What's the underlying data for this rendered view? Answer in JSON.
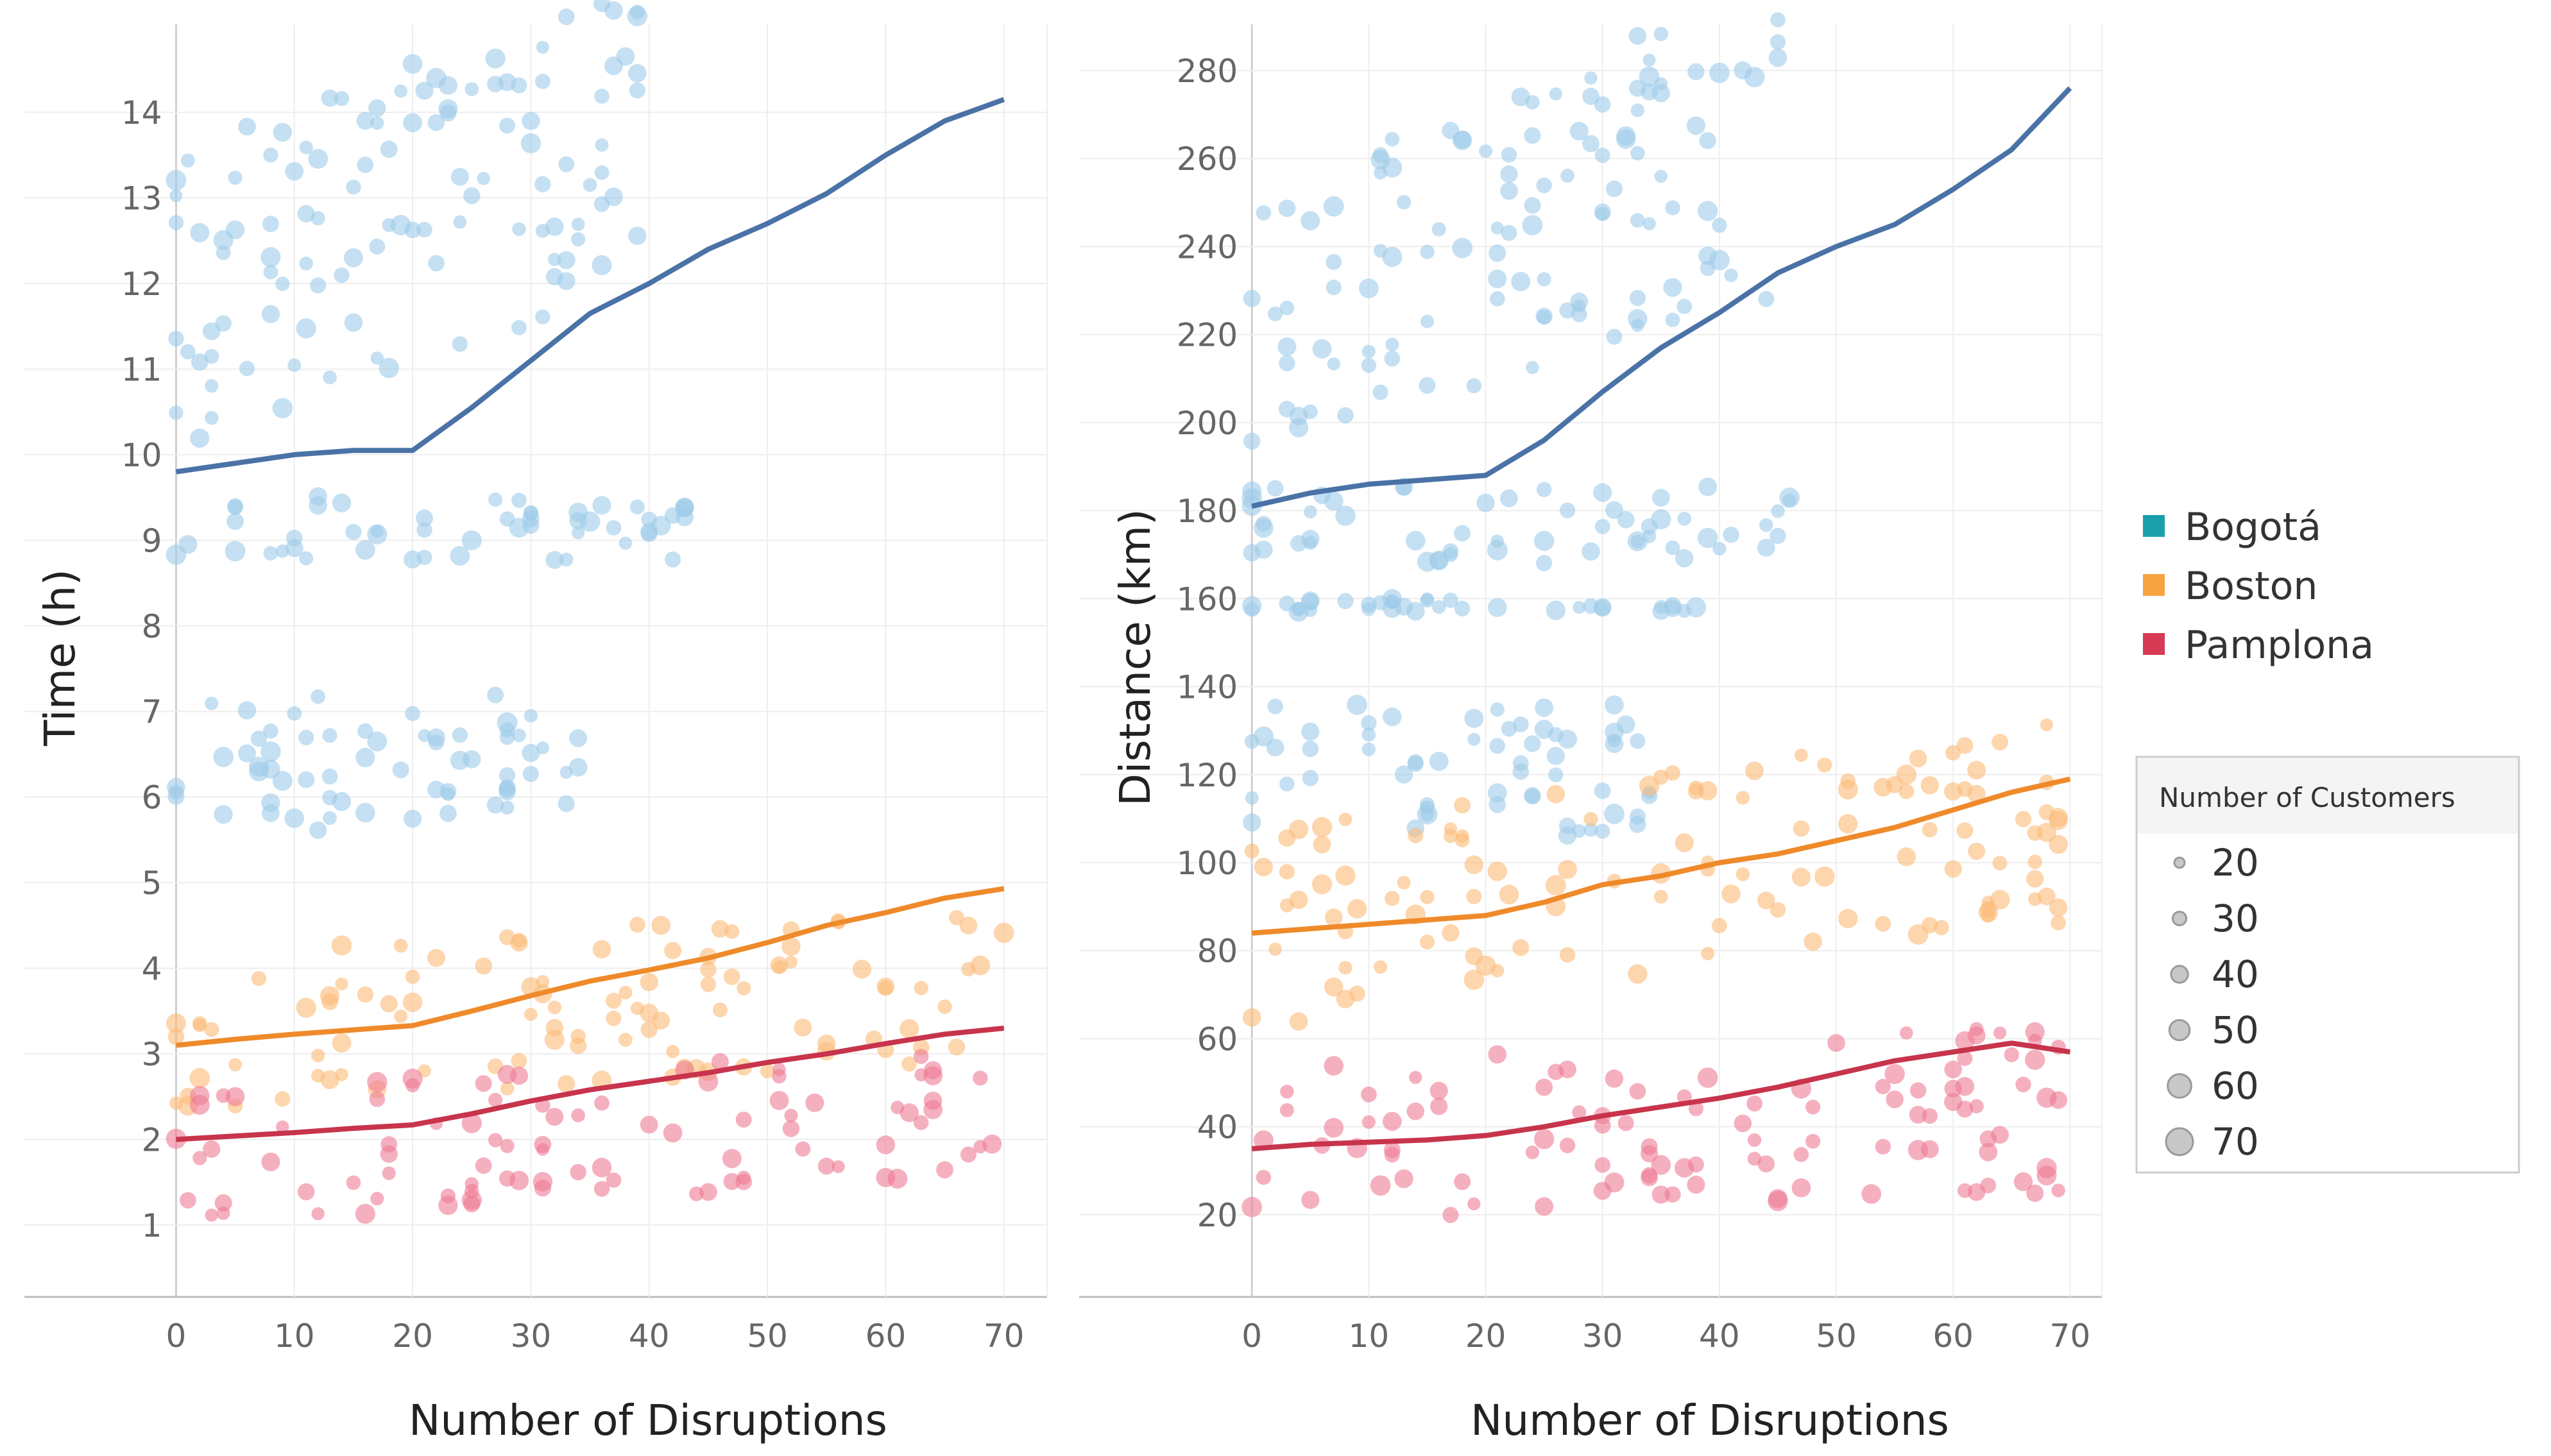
{
  "legend": {
    "items": [
      {
        "label": "Bogotá",
        "color": "#1a9faa"
      },
      {
        "label": "Boston",
        "color": "#f7a340"
      },
      {
        "label": "Pamplona",
        "color": "#d63a54"
      }
    ]
  },
  "size_legend": {
    "title": "Number of Customers",
    "items": [
      "20",
      "30",
      "40",
      "50",
      "60",
      "70"
    ]
  },
  "point_colors": {
    "Bogotá": "#9fcbea",
    "Boston": "#fbbb78",
    "Pamplona": "#ee7b95"
  },
  "line_colors": {
    "Bogotá": "#4a72a6",
    "Boston": "#ef8a2a",
    "Pamplona": "#c7344c"
  },
  "chart_data": [
    {
      "type": "scatter",
      "title": "",
      "xlabel": "Number of Disruptions",
      "ylabel": "Time (h)",
      "xlim": [
        -1,
        73
      ],
      "ylim": [
        0.4,
        14.9
      ],
      "xticks": [
        0,
        10,
        20,
        30,
        40,
        50,
        60,
        70
      ],
      "yticks": [
        1,
        2,
        3,
        4,
        5,
        6,
        7,
        8,
        9,
        10,
        11,
        12,
        13,
        14
      ],
      "series": [
        {
          "name": "Bogotá",
          "clusters": [
            {
              "y_min": 5.6,
              "y_max": 7.2,
              "x_max": 34
            },
            {
              "y_min": 8.75,
              "y_max": 9.55,
              "x_max": 43
            },
            {
              "y_min": 10.0,
              "y_max": 13.6,
              "x_max": 40,
              "x_slope": 0.05,
              "x_span": 34
            }
          ],
          "trend_x": [
            0,
            5,
            10,
            15,
            20,
            25,
            30,
            35,
            40,
            45,
            50,
            55,
            60,
            65,
            70
          ],
          "trend_y": [
            9.8,
            9.9,
            10.0,
            10.05,
            10.05,
            10.55,
            11.1,
            11.65,
            12.0,
            12.4,
            12.7,
            13.05,
            13.5,
            13.9,
            14.15
          ]
        },
        {
          "name": "Boston",
          "clusters": [
            {
              "y_min": 2.3,
              "y_max": 4.2,
              "x_max": 70,
              "x_slope": 0.009
            }
          ],
          "trend_x": [
            0,
            5,
            10,
            15,
            20,
            25,
            30,
            35,
            40,
            45,
            50,
            55,
            60,
            65,
            70
          ],
          "trend_y": [
            3.1,
            3.17,
            3.23,
            3.28,
            3.33,
            3.5,
            3.68,
            3.85,
            3.98,
            4.12,
            4.3,
            4.5,
            4.65,
            4.82,
            4.93
          ]
        },
        {
          "name": "Pamplona",
          "clusters": [
            {
              "y_min": 1.0,
              "y_max": 2.6,
              "x_max": 70,
              "x_slope": 0.008
            }
          ],
          "trend_x": [
            0,
            5,
            10,
            15,
            20,
            25,
            30,
            35,
            40,
            45,
            50,
            55,
            60,
            65,
            70
          ],
          "trend_y": [
            2.0,
            2.04,
            2.08,
            2.13,
            2.17,
            2.3,
            2.45,
            2.58,
            2.68,
            2.78,
            2.9,
            3.0,
            3.12,
            3.23,
            3.3
          ]
        }
      ]
    },
    {
      "type": "scatter",
      "title": "",
      "xlabel": "Number of Disruptions",
      "ylabel": "Distance (km)",
      "xlim": [
        -1,
        73
      ],
      "ylim": [
        6,
        288
      ],
      "xticks": [
        0,
        10,
        20,
        30,
        40,
        50,
        60,
        70
      ],
      "yticks": [
        20,
        40,
        60,
        80,
        100,
        120,
        140,
        160,
        180,
        200,
        220,
        240,
        260,
        280
      ],
      "series": [
        {
          "name": "Bogotá",
          "clusters": [
            {
              "y_min": 105,
              "y_max": 136,
              "x_max": 34
            },
            {
              "y_min": 157,
              "y_max": 160,
              "x_max": 39
            },
            {
              "y_min": 168,
              "y_max": 186,
              "x_max": 47
            },
            {
              "y_min": 190,
              "y_max": 255,
              "x_max": 45,
              "x_slope": 0.9,
              "x_span": 27
            }
          ],
          "trend_x": [
            0,
            5,
            10,
            15,
            20,
            25,
            30,
            35,
            40,
            45,
            50,
            55,
            60,
            65,
            70
          ],
          "trend_y": [
            181,
            184,
            186,
            187,
            188,
            196,
            207,
            217,
            225,
            234,
            240,
            245,
            253,
            262,
            276
          ]
        },
        {
          "name": "Boston",
          "clusters": [
            {
              "y_min": 62,
              "y_max": 108,
              "x_max": 70,
              "x_slope": 0.35
            }
          ],
          "trend_x": [
            0,
            5,
            10,
            15,
            20,
            25,
            30,
            35,
            40,
            45,
            50,
            55,
            60,
            65,
            70
          ],
          "trend_y": [
            84,
            85,
            86,
            87,
            88,
            91,
            95,
            97,
            100,
            102,
            105,
            108,
            112,
            116,
            119
          ]
        },
        {
          "name": "Pamplona",
          "clusters": [
            {
              "y_min": 18,
              "y_max": 56,
              "x_max": 70,
              "x_slope": 0.1
            }
          ],
          "trend_x": [
            0,
            5,
            10,
            15,
            20,
            25,
            30,
            35,
            40,
            45,
            50,
            55,
            60,
            65,
            70
          ],
          "trend_y": [
            35,
            36,
            36.5,
            37,
            38,
            40,
            42.5,
            44.5,
            46.5,
            49,
            52,
            55,
            57,
            59,
            57
          ]
        }
      ]
    }
  ]
}
